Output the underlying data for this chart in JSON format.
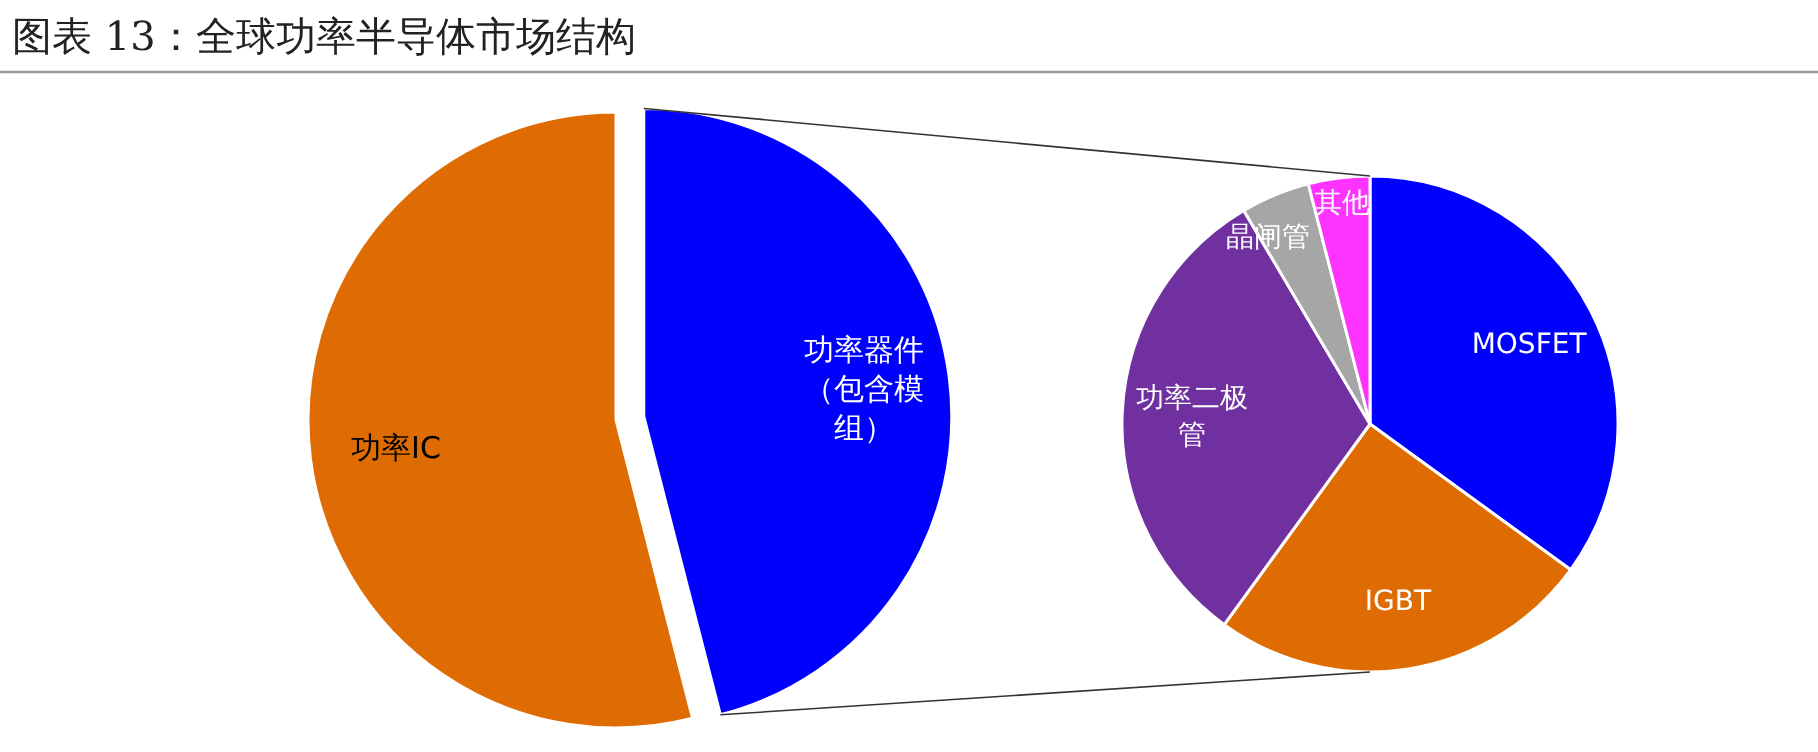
{
  "chart_data": [
    {
      "type": "pie",
      "title": "图表 13：全球功率半导体市场结构",
      "categories": [
        "功率器件（包含模组）",
        "功率IC"
      ],
      "values": [
        46,
        54
      ],
      "colors": [
        "#0000ff",
        "#de6c02"
      ]
    },
    {
      "type": "pie",
      "categories": [
        "MOSFET",
        "IGBT",
        "功率二极管",
        "晶闸管",
        "其他"
      ],
      "values": [
        35,
        25,
        31.5,
        4.5,
        4
      ],
      "colors": [
        "#0000ff",
        "#de6c02",
        "#7030a0",
        "#a6a6a6",
        "#ff33ff"
      ]
    }
  ]
}
